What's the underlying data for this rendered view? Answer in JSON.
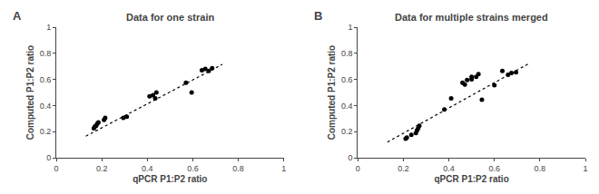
{
  "chart_data": [
    {
      "type": "scatter",
      "title": "Data for one strain",
      "annotations": [
        "A"
      ],
      "xlabel": "qPCR P1:P2 ratio",
      "ylabel": "Computed P1:P2 ratio",
      "xlim": [
        0,
        1
      ],
      "ylim": [
        0,
        1
      ],
      "xticks": [
        0,
        0.2,
        0.4,
        0.6,
        0.8,
        1
      ],
      "yticks": [
        0,
        0.2,
        0.4,
        0.6,
        0.8,
        1
      ],
      "grid": false,
      "series": [
        {
          "type": "scatter",
          "color": "#000000",
          "marker": "circle",
          "x": [
            0.165,
            0.17,
            0.175,
            0.18,
            0.185,
            0.21,
            0.215,
            0.295,
            0.31,
            0.41,
            0.425,
            0.435,
            0.44,
            0.57,
            0.595,
            0.64,
            0.655,
            0.67,
            0.685
          ],
          "values": [
            0.225,
            0.24,
            0.245,
            0.26,
            0.27,
            0.29,
            0.305,
            0.305,
            0.315,
            0.47,
            0.48,
            0.455,
            0.5,
            0.575,
            0.5,
            0.67,
            0.68,
            0.665,
            0.685
          ]
        },
        {
          "type": "line",
          "color": "#000000",
          "line_style": "dotted",
          "x": [
            0.13,
            0.73
          ],
          "values": [
            0.165,
            0.715
          ]
        }
      ]
    },
    {
      "type": "scatter",
      "title": "Data for multiple strains merged",
      "annotations": [
        "B"
      ],
      "xlabel": "qPCR P1:P2 ratio",
      "ylabel": "Computed P1:P2 ratio",
      "xlim": [
        0,
        1
      ],
      "ylim": [
        0,
        1
      ],
      "xticks": [
        0,
        0.2,
        0.4,
        0.6,
        0.8,
        1
      ],
      "yticks": [
        0,
        0.2,
        0.4,
        0.6,
        0.8,
        1
      ],
      "grid": false,
      "series": [
        {
          "type": "scatter",
          "color": "#000000",
          "marker": "circle",
          "x": [
            0.21,
            0.215,
            0.235,
            0.255,
            0.26,
            0.265,
            0.27,
            0.38,
            0.41,
            0.46,
            0.47,
            0.48,
            0.5,
            0.5,
            0.52,
            0.53,
            0.545,
            0.6,
            0.635,
            0.66,
            0.675,
            0.695
          ],
          "values": [
            0.145,
            0.155,
            0.175,
            0.19,
            0.21,
            0.225,
            0.245,
            0.37,
            0.455,
            0.575,
            0.56,
            0.595,
            0.6,
            0.62,
            0.62,
            0.64,
            0.445,
            0.555,
            0.665,
            0.635,
            0.65,
            0.655
          ]
        },
        {
          "type": "line",
          "color": "#000000",
          "line_style": "dotted",
          "x": [
            0.13,
            0.75
          ],
          "values": [
            0.12,
            0.72
          ]
        }
      ]
    }
  ]
}
